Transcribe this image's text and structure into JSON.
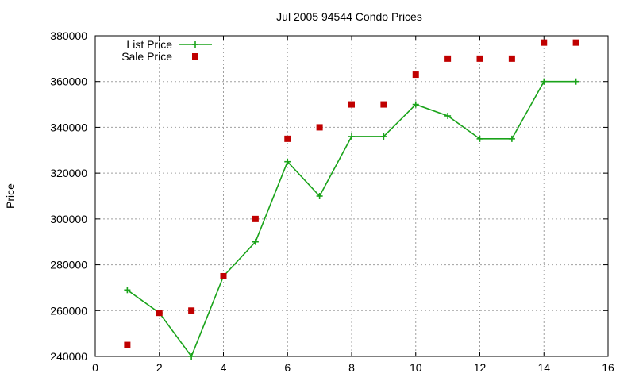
{
  "chart_data": {
    "type": "line",
    "title": "Jul 2005 94544 Condo Prices",
    "ylabel": "Price",
    "xlabel": "",
    "xlim": [
      0,
      16
    ],
    "ylim": [
      240000,
      380000
    ],
    "xticks": [
      0,
      2,
      4,
      6,
      8,
      10,
      12,
      14,
      16
    ],
    "yticks": [
      240000,
      260000,
      280000,
      300000,
      320000,
      340000,
      360000,
      380000
    ],
    "grid": true,
    "legend_position": "top-left",
    "series": [
      {
        "name": "List Price",
        "style": "linespoints",
        "marker": "plus",
        "color": "#1aa31a",
        "x": [
          1,
          2,
          3,
          4,
          5,
          6,
          7,
          8,
          9,
          10,
          11,
          12,
          13,
          14,
          15
        ],
        "values": [
          269000,
          259000,
          240000,
          275000,
          290000,
          325000,
          310000,
          336000,
          336000,
          350000,
          345000,
          335000,
          335000,
          360000,
          360000
        ]
      },
      {
        "name": "Sale Price",
        "style": "points",
        "marker": "square",
        "color": "#c00000",
        "x": [
          1,
          2,
          3,
          4,
          5,
          6,
          7,
          8,
          9,
          10,
          11,
          12,
          13,
          14,
          15
        ],
        "values": [
          245000,
          259000,
          260000,
          275000,
          300000,
          335000,
          340000,
          350000,
          350000,
          363000,
          370000,
          370000,
          370000,
          377000,
          377000
        ]
      }
    ]
  }
}
